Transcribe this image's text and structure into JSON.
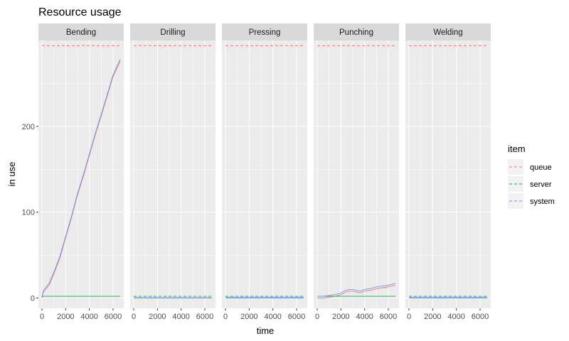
{
  "chart_data": {
    "type": "line",
    "title": "Resource usage",
    "xlabel": "time",
    "ylabel": "in use",
    "xlim": [
      -300,
      6900
    ],
    "ylim": [
      -12,
      300
    ],
    "x_ticks": [
      0,
      2000,
      4000,
      6000
    ],
    "y_ticks": [
      0,
      100,
      200
    ],
    "facets": [
      "Bending",
      "Drilling",
      "Pressing",
      "Punching",
      "Welding"
    ],
    "legend": {
      "title": "item",
      "position": "right",
      "items": [
        {
          "label": "queue",
          "color": "#F8766D"
        },
        {
          "label": "server",
          "color": "#00BA38"
        },
        {
          "label": "system",
          "color": "#619CFF"
        }
      ]
    },
    "panels": [
      {
        "facet": "Bending",
        "series": [
          {
            "name": "queue",
            "linetype": "solid",
            "points": [
              [
                0,
                0
              ],
              [
                100,
                6
              ],
              [
                300,
                10
              ],
              [
                600,
                15
              ],
              [
                1000,
                28
              ],
              [
                1500,
                46
              ],
              [
                2000,
                70
              ],
              [
                2500,
                94
              ],
              [
                3000,
                120
              ],
              [
                3500,
                142
              ],
              [
                4000,
                166
              ],
              [
                4500,
                190
              ],
              [
                5000,
                212
              ],
              [
                5500,
                235
              ],
              [
                6000,
                258
              ],
              [
                6600,
                276
              ]
            ]
          },
          {
            "name": "queue",
            "linetype": "dashed",
            "points": [
              [
                0,
                294
              ],
              [
                6600,
                294
              ]
            ]
          },
          {
            "name": "server",
            "linetype": "solid",
            "points": [
              [
                0,
                2
              ],
              [
                6600,
                2
              ]
            ]
          },
          {
            "name": "system",
            "linetype": "solid",
            "points": [
              [
                0,
                1
              ],
              [
                100,
                8
              ],
              [
                300,
                12
              ],
              [
                600,
                17
              ],
              [
                1000,
                30
              ],
              [
                1500,
                48
              ],
              [
                2000,
                72
              ],
              [
                2500,
                96
              ],
              [
                3000,
                122
              ],
              [
                3500,
                144
              ],
              [
                4000,
                168
              ],
              [
                4500,
                192
              ],
              [
                5000,
                214
              ],
              [
                5500,
                237
              ],
              [
                6000,
                260
              ],
              [
                6600,
                278
              ]
            ]
          }
        ]
      },
      {
        "facet": "Drilling",
        "series": [
          {
            "name": "queue",
            "linetype": "solid",
            "points": [
              [
                0,
                0
              ],
              [
                6600,
                0
              ]
            ]
          },
          {
            "name": "queue",
            "linetype": "dashed",
            "points": [
              [
                0,
                294
              ],
              [
                6600,
                294
              ]
            ]
          },
          {
            "name": "server",
            "linetype": "dashed",
            "points": [
              [
                0,
                2
              ],
              [
                6600,
                2
              ]
            ]
          },
          {
            "name": "system",
            "linetype": "solid",
            "points": [
              [
                0,
                0.5
              ],
              [
                6600,
                0.5
              ]
            ]
          }
        ]
      },
      {
        "facet": "Pressing",
        "series": [
          {
            "name": "queue",
            "linetype": "solid",
            "points": [
              [
                0,
                0
              ],
              [
                6600,
                0
              ]
            ]
          },
          {
            "name": "queue",
            "linetype": "dashed",
            "points": [
              [
                0,
                294
              ],
              [
                6600,
                294
              ]
            ]
          },
          {
            "name": "server",
            "linetype": "dashed",
            "points": [
              [
                0,
                2
              ],
              [
                6600,
                2
              ]
            ]
          },
          {
            "name": "system",
            "linetype": "solid",
            "points": [
              [
                0,
                1
              ],
              [
                6600,
                1
              ]
            ]
          }
        ]
      },
      {
        "facet": "Punching",
        "series": [
          {
            "name": "queue",
            "linetype": "solid",
            "points": [
              [
                0,
                0
              ],
              [
                500,
                0
              ],
              [
                1000,
                1
              ],
              [
                1500,
                2
              ],
              [
                2000,
                4
              ],
              [
                2400,
                7
              ],
              [
                2700,
                8
              ],
              [
                3000,
                8
              ],
              [
                3300,
                7
              ],
              [
                3600,
                6
              ],
              [
                4000,
                8
              ],
              [
                4500,
                9
              ],
              [
                5000,
                11
              ],
              [
                5500,
                12
              ],
              [
                6000,
                13
              ],
              [
                6600,
                15
              ]
            ]
          },
          {
            "name": "queue",
            "linetype": "dashed",
            "points": [
              [
                0,
                294
              ],
              [
                6600,
                294
              ]
            ]
          },
          {
            "name": "server",
            "linetype": "solid",
            "points": [
              [
                0,
                2
              ],
              [
                6600,
                2
              ]
            ]
          },
          {
            "name": "system",
            "linetype": "solid",
            "points": [
              [
                0,
                2
              ],
              [
                500,
                2
              ],
              [
                1000,
                3
              ],
              [
                1500,
                4
              ],
              [
                2000,
                6
              ],
              [
                2400,
                9
              ],
              [
                2700,
                10
              ],
              [
                3000,
                10
              ],
              [
                3300,
                9
              ],
              [
                3600,
                8
              ],
              [
                4000,
                10
              ],
              [
                4500,
                11
              ],
              [
                5000,
                13
              ],
              [
                5500,
                14
              ],
              [
                6000,
                15
              ],
              [
                6600,
                17
              ]
            ]
          }
        ]
      },
      {
        "facet": "Welding",
        "series": [
          {
            "name": "queue",
            "linetype": "solid",
            "points": [
              [
                0,
                0
              ],
              [
                6600,
                0
              ]
            ]
          },
          {
            "name": "queue",
            "linetype": "dashed",
            "points": [
              [
                0,
                294
              ],
              [
                6600,
                294
              ]
            ]
          },
          {
            "name": "server",
            "linetype": "dashed",
            "points": [
              [
                0,
                2
              ],
              [
                6600,
                2
              ]
            ]
          },
          {
            "name": "system",
            "linetype": "solid",
            "points": [
              [
                0,
                1
              ],
              [
                6600,
                1
              ]
            ]
          }
        ]
      }
    ]
  }
}
